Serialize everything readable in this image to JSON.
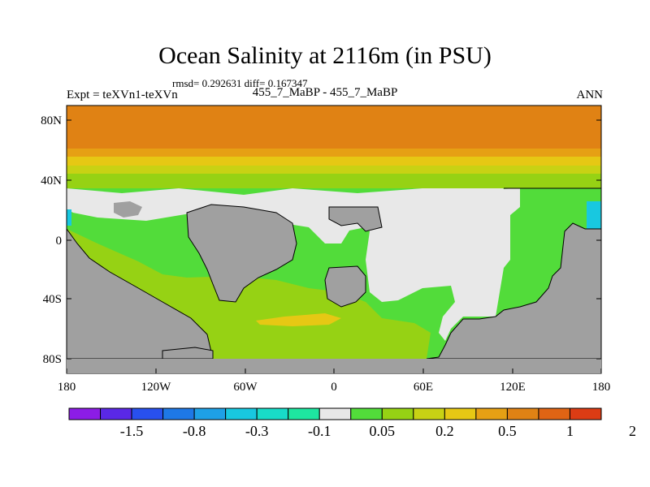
{
  "title": "Ocean Salinity at 2116m (in PSU)",
  "stats": "rmsd= 0.292631 diff= 0.167347",
  "experiment_label": "Expt = teXVn1-teXVn",
  "difference_label": "455_7_MaBP - 455_7_MaBP",
  "season_label": "ANN",
  "map": {
    "projection": "cylindrical equidistant",
    "land_color": "#a0a0a0",
    "coastline_color": "#000000",
    "latitude_ticks": [
      "80N",
      "40N",
      "0",
      "40S",
      "80S"
    ],
    "longitude_ticks": [
      "180",
      "120W",
      "60W",
      "0",
      "60E",
      "120E",
      "180"
    ]
  },
  "colorbar": {
    "colors": [
      "#8c1ce6",
      "#5a28e6",
      "#2850ee",
      "#1e78e6",
      "#1ea0e6",
      "#18c8e0",
      "#18dcc8",
      "#1ee6a0",
      "#e8e8e8",
      "#52dc3a",
      "#96d214",
      "#c8d214",
      "#e6c814",
      "#e6a014",
      "#e08214",
      "#e06414",
      "#dc3c14"
    ],
    "labels": [
      "-1.5",
      "-0.8",
      "-0.3",
      "-0.1",
      "0.05",
      "0.2",
      "0.5",
      "1",
      "2"
    ],
    "units": "PSU"
  }
}
